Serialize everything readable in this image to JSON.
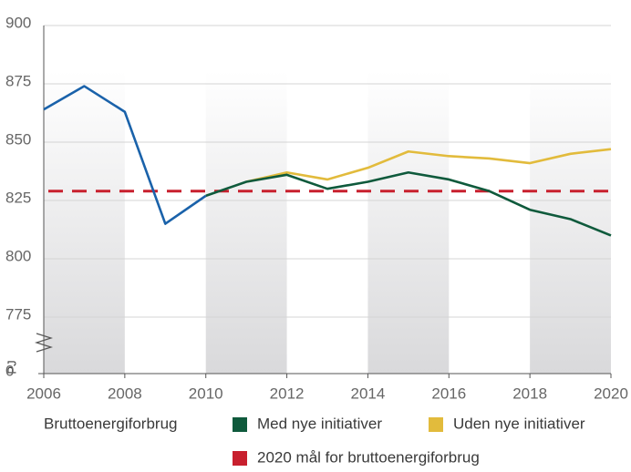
{
  "chart_data": {
    "type": "line",
    "x": [
      2006,
      2007,
      2008,
      2009,
      2010,
      2011,
      2012,
      2013,
      2014,
      2015,
      2016,
      2017,
      2018,
      2019,
      2020
    ],
    "xlim": [
      2006,
      2020
    ],
    "xticks": [
      2006,
      2008,
      2010,
      2012,
      2014,
      2016,
      2018,
      2020
    ],
    "ylim": [
      0,
      900
    ],
    "yticks": [
      0,
      775,
      800,
      825,
      850,
      875,
      900
    ],
    "ylabel": "PJ",
    "grid": true,
    "series": [
      {
        "name": "Bruttoenergiforbrug",
        "color": "#1a62aa",
        "values": [
          864,
          874,
          863,
          815,
          827,
          null,
          null,
          null,
          null,
          null,
          null,
          null,
          null,
          null,
          null
        ]
      },
      {
        "name": "Med nye initiativer",
        "color": "#0f5a3c",
        "values": [
          null,
          null,
          null,
          null,
          827,
          833,
          836,
          830,
          833,
          837,
          834,
          829,
          821,
          817,
          810
        ]
      },
      {
        "name": "Uden nye initiativer",
        "color": "#e2bb3c",
        "values": [
          null,
          null,
          null,
          null,
          null,
          833,
          837,
          834,
          839,
          846,
          844,
          843,
          841,
          845,
          847
        ]
      }
    ],
    "target": {
      "name": "2020 mål for bruttoenergiforbrug",
      "color": "#c8202e",
      "value": 829
    }
  }
}
